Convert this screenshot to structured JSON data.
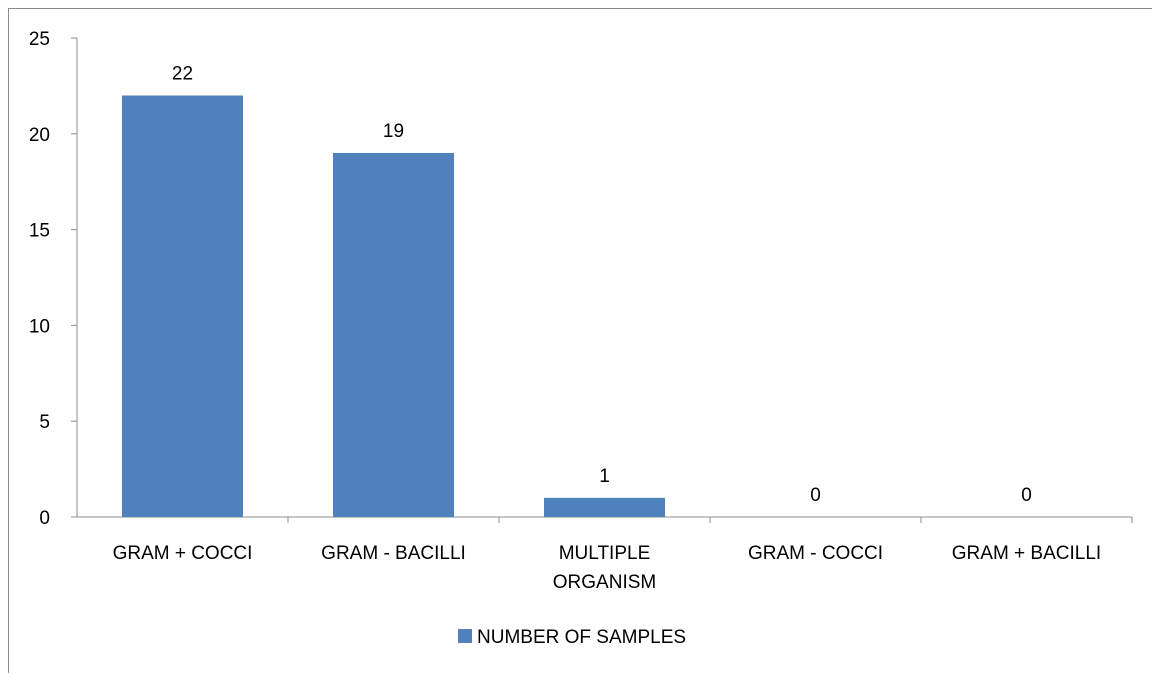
{
  "chart_data": {
    "type": "bar",
    "title": "",
    "xlabel": "",
    "ylabel": "",
    "categories": [
      [
        "GRAM + COCCI"
      ],
      [
        "GRAM - BACILLI"
      ],
      [
        "MULTIPLE",
        "ORGANISM"
      ],
      [
        "GRAM - COCCI"
      ],
      [
        "GRAM + BACILLI"
      ]
    ],
    "series": [
      {
        "name": "NUMBER OF SAMPLES",
        "values": [
          22,
          19,
          1,
          0,
          0
        ],
        "color": "#4f81bd"
      }
    ],
    "data_labels": [
      "22",
      "19",
      "1",
      "0",
      "0"
    ],
    "ylim": [
      0,
      25
    ],
    "yticks": [
      0,
      5,
      10,
      15,
      20,
      25
    ],
    "ytick_labels": [
      "0",
      "5",
      "10",
      "15",
      "20",
      "25"
    ],
    "grid": false,
    "legend_position": "bottom"
  }
}
